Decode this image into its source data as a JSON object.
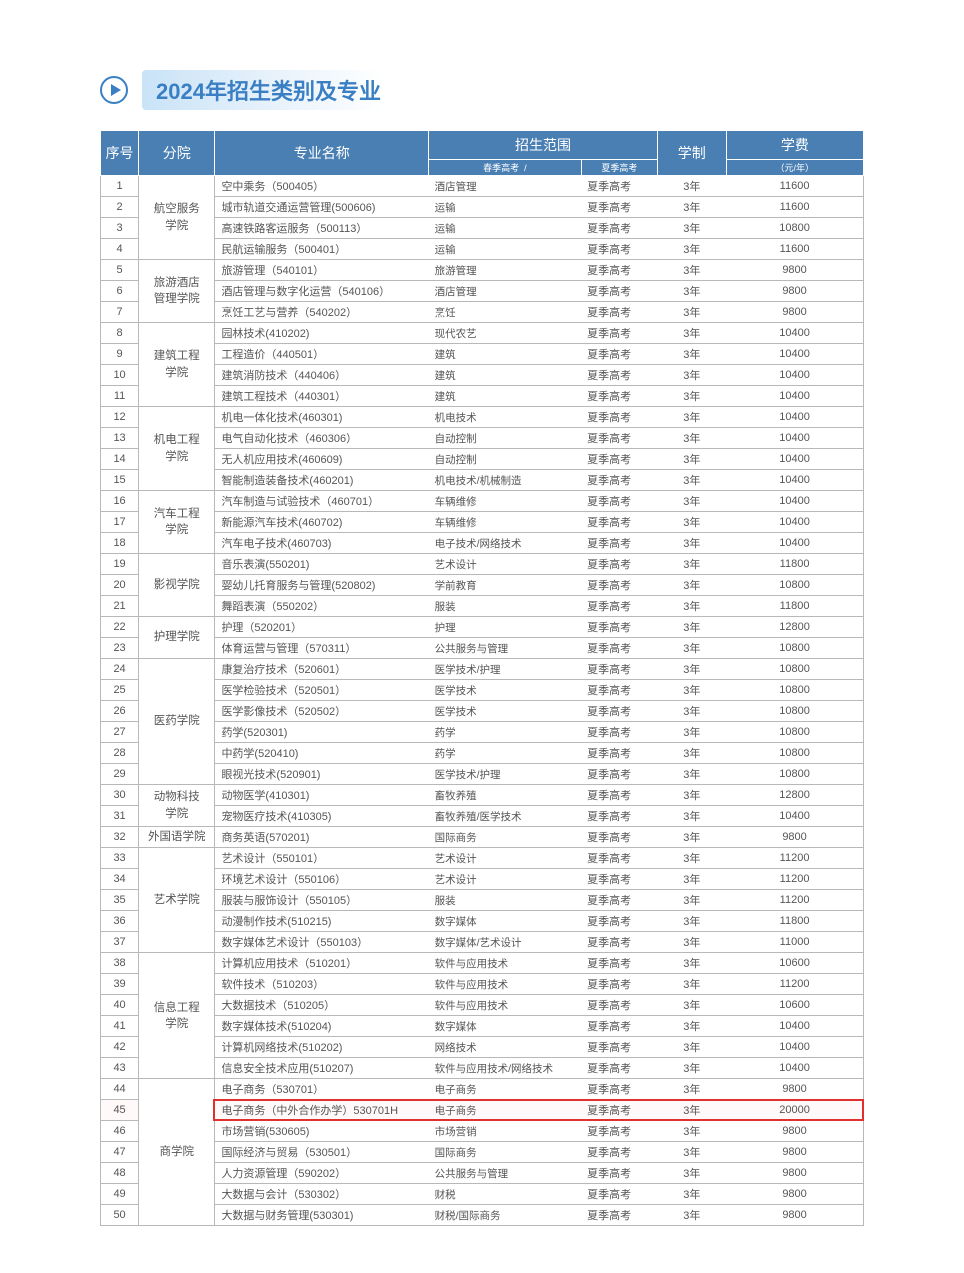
{
  "title": "2024年招生类别及专业",
  "colors": {
    "accent": "#3a7fc4",
    "header_bg": "#4a7fb4",
    "title_bar_start": "#c9e3f7",
    "border": "#b8b8b8",
    "text": "#555555",
    "highlight": "#e03030"
  },
  "col_widths": [
    "5%",
    "10%",
    "28%",
    "20%",
    "10%",
    "9%",
    "18%"
  ],
  "header": {
    "idx": "序号",
    "dept": "分院",
    "major": "专业名称",
    "scope": "招生范围",
    "scope1": "春季高考",
    "scope_sep": "/",
    "scope2": "夏季高考",
    "duration": "学制",
    "fee": "学费",
    "fee_unit": "（元/年）"
  },
  "highlight_row_idx": 45,
  "depts": [
    {
      "name": "航空服务\n学院",
      "start": 1,
      "span": 4
    },
    {
      "name": "旅游酒店\n管理学院",
      "start": 5,
      "span": 3
    },
    {
      "name": "建筑工程\n学院",
      "start": 8,
      "span": 4
    },
    {
      "name": "机电工程\n学院",
      "start": 12,
      "span": 4
    },
    {
      "name": "汽车工程\n学院",
      "start": 16,
      "span": 3
    },
    {
      "name": "影视学院",
      "start": 19,
      "span": 3
    },
    {
      "name": "护理学院",
      "start": 22,
      "span": 2
    },
    {
      "name": "医药学院",
      "start": 24,
      "span": 6
    },
    {
      "name": "动物科技\n学院",
      "start": 30,
      "span": 2
    },
    {
      "name": "外国语学院",
      "start": 32,
      "span": 1
    },
    {
      "name": "艺术学院",
      "start": 33,
      "span": 5
    },
    {
      "name": "信息工程\n学院",
      "start": 38,
      "span": 6
    },
    {
      "name": "商学院",
      "start": 44,
      "span": 7
    }
  ],
  "rows": [
    {
      "idx": 1,
      "major": "空中乘务（500405）",
      "s1": "酒店管理",
      "s2": "夏季高考",
      "dur": "3年",
      "fee": "11600"
    },
    {
      "idx": 2,
      "major": "城市轨道交通运营管理(500606)",
      "s1": "运输",
      "s2": "夏季高考",
      "dur": "3年",
      "fee": "11600"
    },
    {
      "idx": 3,
      "major": "高速铁路客运服务（500113）",
      "s1": "运输",
      "s2": "夏季高考",
      "dur": "3年",
      "fee": "10800"
    },
    {
      "idx": 4,
      "major": "民航运输服务（500401）",
      "s1": "运输",
      "s2": "夏季高考",
      "dur": "3年",
      "fee": "11600"
    },
    {
      "idx": 5,
      "major": "旅游管理（540101）",
      "s1": "旅游管理",
      "s2": "夏季高考",
      "dur": "3年",
      "fee": "9800"
    },
    {
      "idx": 6,
      "major": "酒店管理与数字化运营（540106）",
      "s1": "酒店管理",
      "s2": "夏季高考",
      "dur": "3年",
      "fee": "9800"
    },
    {
      "idx": 7,
      "major": "烹饪工艺与营养（540202）",
      "s1": "烹饪",
      "s2": "夏季高考",
      "dur": "3年",
      "fee": "9800"
    },
    {
      "idx": 8,
      "major": "园林技术(410202)",
      "s1": "现代农艺",
      "s2": "夏季高考",
      "dur": "3年",
      "fee": "10400"
    },
    {
      "idx": 9,
      "major": "工程造价（440501）",
      "s1": "建筑",
      "s2": "夏季高考",
      "dur": "3年",
      "fee": "10400"
    },
    {
      "idx": 10,
      "major": "建筑消防技术（440406）",
      "s1": "建筑",
      "s2": "夏季高考",
      "dur": "3年",
      "fee": "10400"
    },
    {
      "idx": 11,
      "major": "建筑工程技术（440301）",
      "s1": "建筑",
      "s2": "夏季高考",
      "dur": "3年",
      "fee": "10400"
    },
    {
      "idx": 12,
      "major": "机电一体化技术(460301)",
      "s1": "机电技术",
      "s2": "夏季高考",
      "dur": "3年",
      "fee": "10400"
    },
    {
      "idx": 13,
      "major": "电气自动化技术（460306）",
      "s1": "自动控制",
      "s2": "夏季高考",
      "dur": "3年",
      "fee": "10400"
    },
    {
      "idx": 14,
      "major": "无人机应用技术(460609)",
      "s1": "自动控制",
      "s2": "夏季高考",
      "dur": "3年",
      "fee": "10400"
    },
    {
      "idx": 15,
      "major": "智能制造装备技术(460201)",
      "s1": "机电技术/机械制造",
      "s2": "夏季高考",
      "dur": "3年",
      "fee": "10400"
    },
    {
      "idx": 16,
      "major": "汽车制造与试验技术（460701）",
      "s1": "车辆维修",
      "s2": "夏季高考",
      "dur": "3年",
      "fee": "10400"
    },
    {
      "idx": 17,
      "major": "新能源汽车技术(460702)",
      "s1": "车辆维修",
      "s2": "夏季高考",
      "dur": "3年",
      "fee": "10400"
    },
    {
      "idx": 18,
      "major": "汽车电子技术(460703)",
      "s1": "电子技术/网络技术",
      "s2": "夏季高考",
      "dur": "3年",
      "fee": "10400"
    },
    {
      "idx": 19,
      "major": "音乐表演(550201)",
      "s1": "艺术设计",
      "s2": "夏季高考",
      "dur": "3年",
      "fee": "11800"
    },
    {
      "idx": 20,
      "major": "婴幼儿托育服务与管理(520802)",
      "s1": "学前教育",
      "s2": "夏季高考",
      "dur": "3年",
      "fee": "10800"
    },
    {
      "idx": 21,
      "major": "舞蹈表演（550202）",
      "s1": "服装",
      "s2": "夏季高考",
      "dur": "3年",
      "fee": "11800"
    },
    {
      "idx": 22,
      "major": "护理（520201）",
      "s1": "护理",
      "s2": "夏季高考",
      "dur": "3年",
      "fee": "12800"
    },
    {
      "idx": 23,
      "major": "体育运营与管理（570311）",
      "s1": "公共服务与管理",
      "s2": "夏季高考",
      "dur": "3年",
      "fee": "10800"
    },
    {
      "idx": 24,
      "major": "康复治疗技术（520601）",
      "s1": "医学技术/护理",
      "s2": "夏季高考",
      "dur": "3年",
      "fee": "10800"
    },
    {
      "idx": 25,
      "major": "医学检验技术（520501）",
      "s1": "医学技术",
      "s2": "夏季高考",
      "dur": "3年",
      "fee": "10800"
    },
    {
      "idx": 26,
      "major": "医学影像技术（520502）",
      "s1": "医学技术",
      "s2": "夏季高考",
      "dur": "3年",
      "fee": "10800"
    },
    {
      "idx": 27,
      "major": "药学(520301)",
      "s1": "药学",
      "s2": "夏季高考",
      "dur": "3年",
      "fee": "10800"
    },
    {
      "idx": 28,
      "major": "中药学(520410)",
      "s1": "药学",
      "s2": "夏季高考",
      "dur": "3年",
      "fee": "10800"
    },
    {
      "idx": 29,
      "major": "眼视光技术(520901)",
      "s1": "医学技术/护理",
      "s2": "夏季高考",
      "dur": "3年",
      "fee": "10800"
    },
    {
      "idx": 30,
      "major": "动物医学(410301)",
      "s1": "畜牧养殖",
      "s2": "夏季高考",
      "dur": "3年",
      "fee": "12800"
    },
    {
      "idx": 31,
      "major": "宠物医疗技术(410305)",
      "s1": "畜牧养殖/医学技术",
      "s2": "夏季高考",
      "dur": "3年",
      "fee": "10400"
    },
    {
      "idx": 32,
      "major": "商务英语(570201)",
      "s1": "国际商务",
      "s2": "夏季高考",
      "dur": "3年",
      "fee": "9800"
    },
    {
      "idx": 33,
      "major": "艺术设计（550101）",
      "s1": "艺术设计",
      "s2": "夏季高考",
      "dur": "3年",
      "fee": "11200"
    },
    {
      "idx": 34,
      "major": "环境艺术设计（550106）",
      "s1": "艺术设计",
      "s2": "夏季高考",
      "dur": "3年",
      "fee": "11200"
    },
    {
      "idx": 35,
      "major": "服装与服饰设计（550105）",
      "s1": "服装",
      "s2": "夏季高考",
      "dur": "3年",
      "fee": "11200"
    },
    {
      "idx": 36,
      "major": "动漫制作技术(510215)",
      "s1": "数字媒体",
      "s2": "夏季高考",
      "dur": "3年",
      "fee": "11800"
    },
    {
      "idx": 37,
      "major": "数字媒体艺术设计（550103）",
      "s1": "数字媒体/艺术设计",
      "s2": "夏季高考",
      "dur": "3年",
      "fee": "11000"
    },
    {
      "idx": 38,
      "major": "计算机应用技术（510201）",
      "s1": "软件与应用技术",
      "s2": "夏季高考",
      "dur": "3年",
      "fee": "10600"
    },
    {
      "idx": 39,
      "major": "软件技术（510203）",
      "s1": "软件与应用技术",
      "s2": "夏季高考",
      "dur": "3年",
      "fee": "11200"
    },
    {
      "idx": 40,
      "major": "大数据技术（510205）",
      "s1": "软件与应用技术",
      "s2": "夏季高考",
      "dur": "3年",
      "fee": "10600"
    },
    {
      "idx": 41,
      "major": "数字媒体技术(510204)",
      "s1": "数字媒体",
      "s2": "夏季高考",
      "dur": "3年",
      "fee": "10400"
    },
    {
      "idx": 42,
      "major": "计算机网络技术(510202)",
      "s1": "网络技术",
      "s2": "夏季高考",
      "dur": "3年",
      "fee": "10400"
    },
    {
      "idx": 43,
      "major": "信息安全技术应用(510207)",
      "s1": "软件与应用技术/网络技术",
      "s2": "夏季高考",
      "dur": "3年",
      "fee": "10400"
    },
    {
      "idx": 44,
      "major": "电子商务（530701）",
      "s1": "电子商务",
      "s2": "夏季高考",
      "dur": "3年",
      "fee": "9800"
    },
    {
      "idx": 45,
      "major": "电子商务（中外合作办学）530701H",
      "s1": "电子商务",
      "s2": "夏季高考",
      "dur": "3年",
      "fee": "20000"
    },
    {
      "idx": 46,
      "major": "市场营销(530605)",
      "s1": "市场营销",
      "s2": "夏季高考",
      "dur": "3年",
      "fee": "9800"
    },
    {
      "idx": 47,
      "major": "国际经济与贸易（530501）",
      "s1": "国际商务",
      "s2": "夏季高考",
      "dur": "3年",
      "fee": "9800"
    },
    {
      "idx": 48,
      "major": "人力资源管理（590202）",
      "s1": "公共服务与管理",
      "s2": "夏季高考",
      "dur": "3年",
      "fee": "9800"
    },
    {
      "idx": 49,
      "major": "大数据与会计（530302）",
      "s1": "财税",
      "s2": "夏季高考",
      "dur": "3年",
      "fee": "9800"
    },
    {
      "idx": 50,
      "major": "大数据与财务管理(530301)",
      "s1": "财税/国际商务",
      "s2": "夏季高考",
      "dur": "3年",
      "fee": "9800"
    }
  ]
}
